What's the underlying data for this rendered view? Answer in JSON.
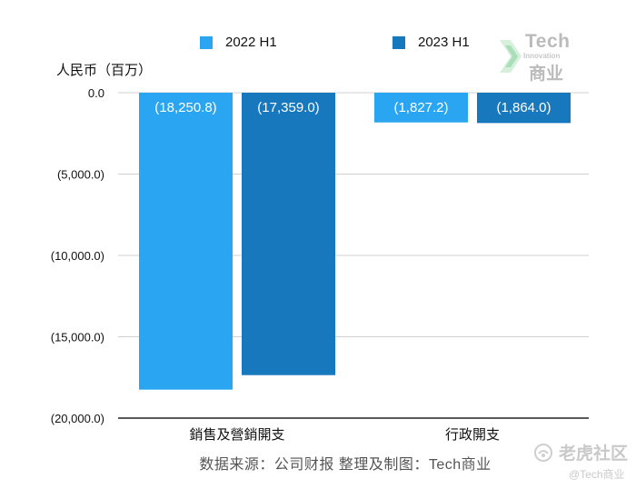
{
  "chart_data": {
    "type": "bar",
    "categories": [
      "銷售及營銷開支",
      "行政開支"
    ],
    "series": [
      {
        "name": "2022 H1",
        "values": [
          -18250.8,
          -1827.2
        ],
        "labels": [
          "(18,250.8)",
          "(1,827.2)"
        ],
        "color": "#2aa5f2"
      },
      {
        "name": "2023 H1",
        "values": [
          -17359.0,
          -1864.0
        ],
        "labels": [
          "(17,359.0)",
          "(1,864.0)"
        ],
        "color": "#1878be"
      }
    ],
    "ylabel": "人民币（百万）",
    "ylim": [
      -20000,
      0
    ],
    "yticks": [
      0,
      -5000,
      -10000,
      -15000,
      -20000
    ],
    "ytick_labels": [
      "0.0",
      "(5,000.0)",
      "(10,000.0)",
      "(15,000.0)",
      "(20,000.0)"
    ],
    "grid": true,
    "legend_position": "top"
  },
  "source_text": "数据来源：公司财报 整理及制图：Tech商业",
  "logo": {
    "line1": "Tech",
    "line2": "Innovation",
    "line3": "商业"
  },
  "watermark": {
    "main": "老虎社区",
    "sub": "@Tech商业"
  }
}
